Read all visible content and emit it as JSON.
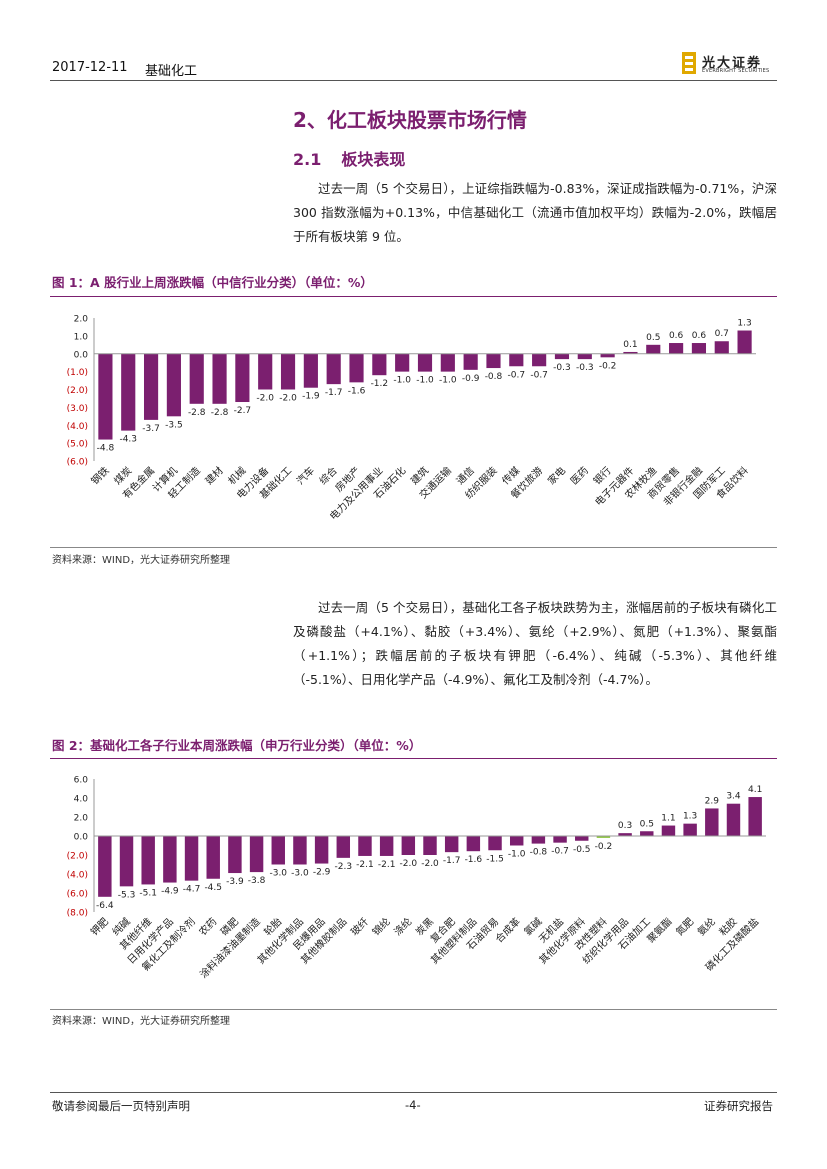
{
  "header": {
    "date": "2017-12-11",
    "sector": "基础化工",
    "logo_cn": "光大证券",
    "logo_en": "EVERBRIGHT SECURITIES"
  },
  "section": {
    "title": "2、化工板块股票市场行情",
    "sub_num": "2.1",
    "sub_title": "板块表现"
  },
  "paragraph1": "过去一周（5 个交易日），上证综指跌幅为-0.83%，深证成指跌幅为-0.71%，沪深 300 指数涨幅为+0.13%，中信基础化工（流通市值加权平均）跌幅为-2.0%，跌幅居于所有板块第 9 位。",
  "paragraph2": "过去一周（5 个交易日），基础化工各子板块跌势为主，涨幅居前的子板块有磷化工及磷酸盐（+4.1%）、黏胶（+3.4%）、氨纶（+2.9%）、氮肥（+1.3%）、聚氨酯（+1.1%）；跌幅居前的子板块有钾肥（-6.4%）、纯碱（-5.3%）、其他纤维（-5.1%）、日用化学产品（-4.9%）、氟化工及制冷剂（-4.7%）。",
  "figure1": {
    "title": "图 1：A 股行业上周涨跌幅（中信行业分类）（单位：%）",
    "source": "资料来源：WIND，光大证券研究所整理"
  },
  "figure2": {
    "title": "图 2：基础化工各子行业本周涨跌幅（申万行业分类）（单位：%）",
    "source": "资料来源：WIND，光大证券研究所整理"
  },
  "chart_data": [
    {
      "type": "bar",
      "title": "A 股行业上周涨跌幅（中信行业分类）（单位：%）",
      "ylim": [
        -6,
        2
      ],
      "yticks": [
        "2.0",
        "1.0",
        "0.0",
        "(1.0)",
        "(2.0)",
        "(3.0)",
        "(4.0)",
        "(5.0)",
        "(6.0)"
      ],
      "categories": [
        "钢铁",
        "煤炭",
        "有色金属",
        "计算机",
        "轻工制造",
        "建材",
        "机械",
        "电力设备",
        "基础化工",
        "汽车",
        "综合",
        "房地产",
        "电力及公用事业",
        "石油石化",
        "建筑",
        "交通运输",
        "通信",
        "纺织服装",
        "传媒",
        "餐饮旅游",
        "家电",
        "医药",
        "银行",
        "电子元器件",
        "农林牧渔",
        "商贸零售",
        "非银行金融",
        "国防军工",
        "食品饮料"
      ],
      "values": [
        -4.8,
        -4.3,
        -3.7,
        -3.5,
        -2.8,
        -2.8,
        -2.7,
        -2.0,
        -2.0,
        -1.9,
        -1.7,
        -1.6,
        -1.2,
        -1.0,
        -1.0,
        -1.0,
        -0.9,
        -0.8,
        -0.7,
        -0.7,
        -0.3,
        -0.3,
        -0.2,
        0.1,
        0.5,
        0.6,
        0.6,
        0.7,
        1.3
      ],
      "labels": [
        "-4.8",
        "-4.3",
        "-3.7",
        "-3.5",
        "-2.8",
        "-2.8",
        "-2.7",
        "-2.0",
        "-2.0",
        "-1.9",
        "-1.7",
        "-1.6",
        "-1.2",
        "-1.0",
        "-1.0",
        "-1.0",
        "-0.9",
        "-0.8",
        "-0.7",
        "-0.7",
        "-0.3",
        "-0.3",
        "-0.2",
        "0.1",
        "0.5",
        "0.6",
        "0.6",
        "0.7",
        "1.3"
      ],
      "bar_color": "#7B1F6F",
      "negative_tick_color": "#C00000"
    },
    {
      "type": "bar",
      "title": "基础化工各子行业本周涨跌幅（申万行业分类）（单位：%）",
      "ylim": [
        -8,
        6
      ],
      "yticks": [
        "6.0",
        "4.0",
        "2.0",
        "0.0",
        "(2.0)",
        "(4.0)",
        "(6.0)",
        "(8.0)"
      ],
      "categories": [
        "钾肥",
        "纯碱",
        "其他纤维",
        "日用化学产品",
        "氟化工及制冷剂",
        "农药",
        "磷肥",
        "涂料油漆油墨制造",
        "轮胎",
        "其他化学制品",
        "民爆用品",
        "其他橡胶制品",
        "玻纤",
        "锦纶",
        "涤纶",
        "炭黑",
        "复合肥",
        "其他塑料制品",
        "石油贸易",
        "合成革",
        "氯碱",
        "无机盐",
        "其他化学原料",
        "改性塑料",
        "纺织化学用品",
        "石油加工",
        "聚氨酯",
        "氮肥",
        "氨纶",
        "粘胶",
        "磷化工及磷酸盐"
      ],
      "values": [
        -6.4,
        -5.3,
        -5.1,
        -4.9,
        -4.7,
        -4.5,
        -3.9,
        -3.8,
        -3.0,
        -3.0,
        -2.9,
        -2.3,
        -2.1,
        -2.1,
        -2.0,
        -2.0,
        -1.7,
        -1.6,
        -1.5,
        -1.0,
        -0.8,
        -0.7,
        -0.5,
        -0.2,
        0.3,
        0.5,
        1.1,
        1.3,
        2.9,
        3.4,
        4.1
      ],
      "labels": [
        "-6.4",
        "-5.3",
        "-5.1",
        "-4.9",
        "-4.7",
        "-4.5",
        "-3.9",
        "-3.8",
        "-3.0",
        "-3.0",
        "-2.9",
        "-2.3",
        "-2.1",
        "-2.1",
        "-2.0",
        "-2.0",
        "-1.7",
        "-1.6",
        "-1.5",
        "-1.0",
        "-0.8",
        "-0.7",
        "-0.5",
        "-0.2",
        "0.3",
        "0.5",
        "1.1",
        "1.3",
        "2.9",
        "3.4",
        "4.1"
      ],
      "bar_color": "#7B1F6F",
      "highlight": {
        "category": "改性塑料",
        "color": "#8DC63F"
      },
      "negative_tick_color": "#C00000"
    }
  ],
  "footer": {
    "left": "敬请参阅最后一页特别声明",
    "page": "-4-",
    "right": "证券研究报告"
  }
}
